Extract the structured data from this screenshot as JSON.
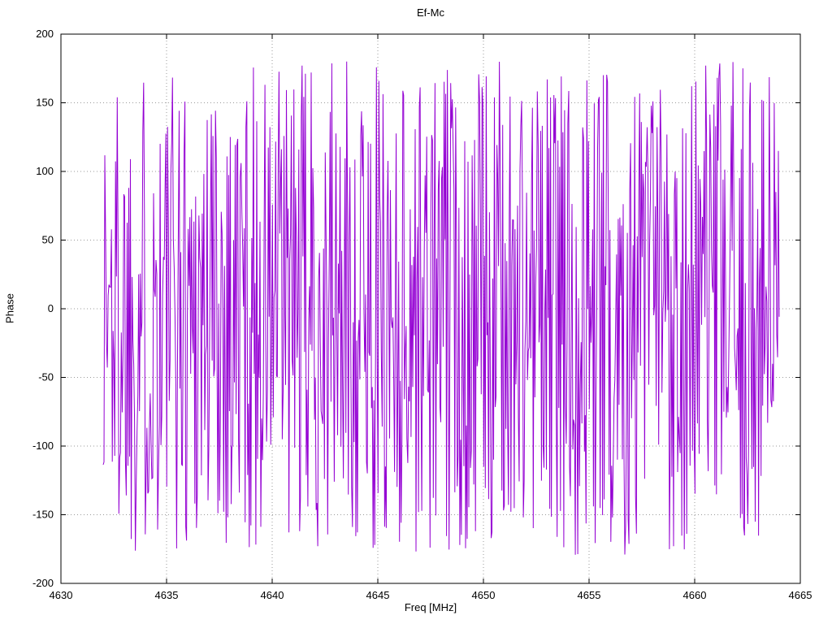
{
  "chart_data": {
    "type": "line",
    "title": "Ef-Mc",
    "xlabel": "Freq [MHz]",
    "ylabel": "Phase",
    "xlim": [
      4630,
      4665
    ],
    "ylim": [
      -200,
      200
    ],
    "x_ticks": [
      4630,
      4635,
      4640,
      4645,
      4650,
      4655,
      4660,
      4665
    ],
    "y_ticks": [
      -200,
      -150,
      -100,
      -50,
      0,
      50,
      100,
      150,
      200
    ],
    "grid": true,
    "grid_style": "dotted",
    "grid_color": "#9a9a9a",
    "border_color": "#000000",
    "background_color": "#ffffff",
    "legend": "none",
    "series": [
      {
        "name": "Ef-Mc",
        "color": "#9400d3",
        "x_start": 4632.0,
        "x_end": 4664.0,
        "n_points": 820,
        "y_min": -180,
        "y_max": 180,
        "distribution": "uniform-random-wrapped-phase",
        "seed": 1337
      }
    ]
  }
}
